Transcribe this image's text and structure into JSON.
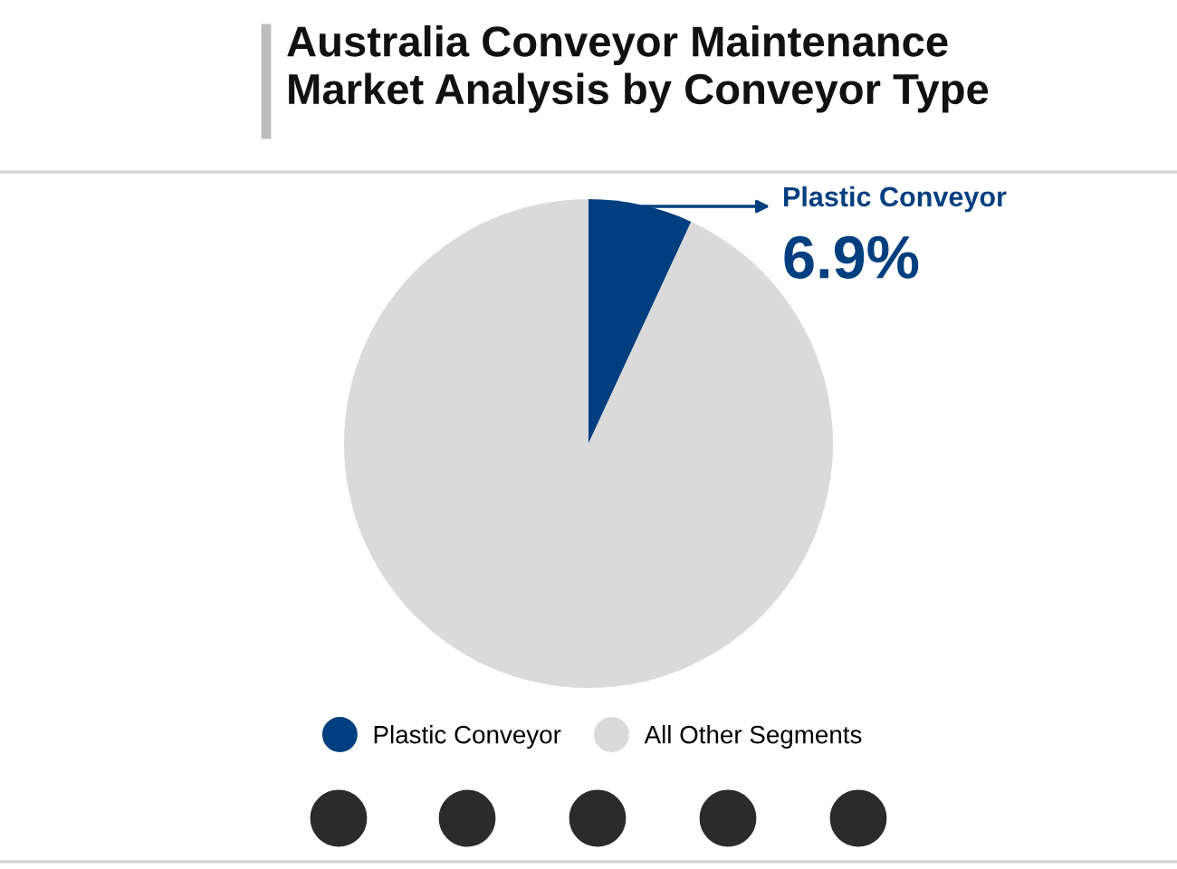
{
  "chart_data": {
    "type": "pie",
    "title": "Australia Conveyor Maintenance\nMarket Analysis by Conveyor Type",
    "categories": [
      "Plastic Conveyor",
      "All Other Segments"
    ],
    "values": [
      6.9,
      93.1
    ],
    "colors": [
      "#003f7f",
      "#dadada"
    ],
    "value_labels": [
      "6.9%",
      null
    ],
    "legend": "bottom"
  }
}
